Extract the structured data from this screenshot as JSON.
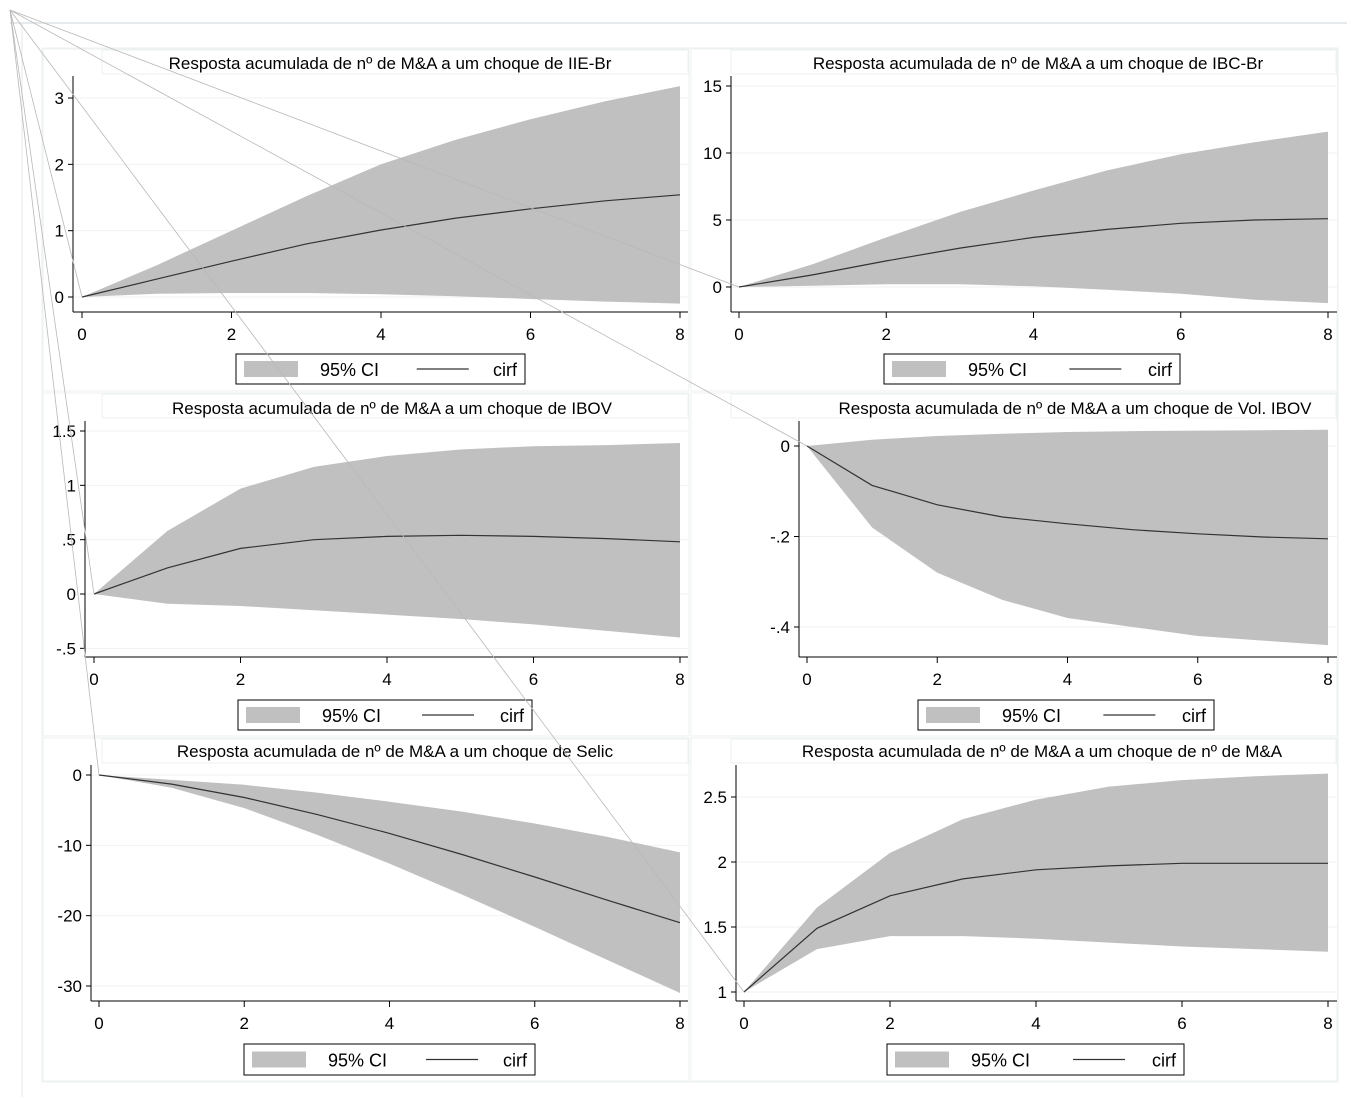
{
  "legend": {
    "ci_label": "95% CI",
    "line_label": "cirf"
  },
  "colors": {
    "band": "#c0c0c0",
    "line": "#333333",
    "grid": "#eef2f3",
    "background": "#ffffff"
  },
  "chart_data": [
    {
      "type": "area",
      "title": "Resposta acumulada de nº de M&A a um choque de IIE-Br",
      "x": [
        0,
        1,
        2,
        3,
        4,
        5,
        6,
        7,
        8
      ],
      "series": [
        {
          "name": "95% CI",
          "lower": [
            0,
            0.05,
            0.06,
            0.06,
            0.04,
            0.01,
            -0.03,
            -0.07,
            -0.1
          ],
          "upper": [
            0,
            0.48,
            1.0,
            1.52,
            2.0,
            2.37,
            2.68,
            2.95,
            3.18
          ]
        },
        {
          "name": "cirf",
          "values": [
            0,
            0.27,
            0.54,
            0.8,
            1.01,
            1.19,
            1.33,
            1.45,
            1.54
          ]
        }
      ],
      "xticks": [
        0,
        2,
        4,
        6,
        8
      ],
      "yticks": [
        0,
        1,
        2,
        3
      ],
      "ytick_labels": [
        "0",
        "1",
        "2",
        "3"
      ],
      "xlim": [
        0,
        8
      ],
      "ylim": [
        -0.2,
        3.3
      ]
    },
    {
      "type": "area",
      "title": "Resposta acumulada de nº de M&A a um choque de IBC-Br",
      "x": [
        0,
        1,
        2,
        3,
        4,
        5,
        6,
        7,
        8
      ],
      "series": [
        {
          "name": "95% CI",
          "lower": [
            0,
            0.1,
            0.2,
            0.2,
            0.05,
            -0.2,
            -0.5,
            -0.95,
            -1.2
          ],
          "upper": [
            0,
            1.7,
            3.7,
            5.6,
            7.2,
            8.7,
            9.9,
            10.8,
            11.6
          ]
        },
        {
          "name": "cirf",
          "values": [
            0,
            0.9,
            1.95,
            2.9,
            3.7,
            4.3,
            4.75,
            5.0,
            5.1
          ]
        }
      ],
      "xticks": [
        0,
        2,
        4,
        6,
        8
      ],
      "yticks": [
        0,
        5,
        10,
        15
      ],
      "ytick_labels": [
        "0",
        "5",
        "10",
        "15"
      ],
      "xlim": [
        0,
        8
      ],
      "ylim": [
        -2,
        15.8
      ]
    },
    {
      "type": "area",
      "title": "Resposta acumulada de nº de M&A a um choque de IBOV",
      "x": [
        0,
        1,
        2,
        3,
        4,
        5,
        6,
        7,
        8
      ],
      "series": [
        {
          "name": "95% CI",
          "lower": [
            0,
            -0.09,
            -0.11,
            -0.15,
            -0.19,
            -0.23,
            -0.28,
            -0.34,
            -0.4
          ],
          "upper": [
            0,
            0.58,
            0.97,
            1.17,
            1.27,
            1.33,
            1.36,
            1.37,
            1.39
          ]
        },
        {
          "name": "cirf",
          "values": [
            0,
            0.24,
            0.42,
            0.5,
            0.53,
            0.54,
            0.53,
            0.51,
            0.48
          ]
        }
      ],
      "xticks": [
        0,
        2,
        4,
        6,
        8
      ],
      "yticks": [
        -0.5,
        0,
        0.5,
        1,
        1.5
      ],
      "ytick_labels": [
        "-.5",
        "0",
        ".5",
        "1",
        "1.5"
      ],
      "xlim": [
        0,
        8
      ],
      "ylim": [
        -0.55,
        1.6
      ]
    },
    {
      "type": "area",
      "title": "Resposta acumulada de nº de M&A a um choque de Vol. IBOV",
      "x": [
        0,
        1,
        2,
        3,
        4,
        5,
        6,
        7,
        8
      ],
      "series": [
        {
          "name": "95% CI",
          "lower": [
            0,
            -0.18,
            -0.28,
            -0.34,
            -0.38,
            -0.4,
            -0.42,
            -0.43,
            -0.44
          ],
          "upper": [
            0,
            0.014,
            0.022,
            0.027,
            0.031,
            0.033,
            0.034,
            0.035,
            0.036
          ]
        },
        {
          "name": "cirf",
          "values": [
            0,
            -0.087,
            -0.13,
            -0.157,
            -0.172,
            -0.185,
            -0.194,
            -0.201,
            -0.205
          ]
        }
      ],
      "xticks": [
        0,
        2,
        4,
        6,
        8
      ],
      "yticks": [
        -0.4,
        -0.2,
        0
      ],
      "ytick_labels": [
        "-.4",
        "-.2",
        "0"
      ],
      "xlim": [
        0,
        8
      ],
      "ylim": [
        -0.465,
        0.04
      ]
    },
    {
      "type": "area",
      "title": "Resposta acumulada de nº de M&A a um choque de Selic",
      "x": [
        0,
        1,
        2,
        3,
        4,
        5,
        6,
        7,
        8
      ],
      "series": [
        {
          "name": "95% CI",
          "lower": [
            0,
            -1.8,
            -4.7,
            -8.5,
            -12.6,
            -17.0,
            -21.6,
            -26.3,
            -31.0
          ],
          "upper": [
            0,
            -0.7,
            -1.4,
            -2.5,
            -3.8,
            -5.2,
            -6.9,
            -8.8,
            -11.0
          ]
        },
        {
          "name": "cirf",
          "values": [
            0,
            -1.3,
            -3.2,
            -5.6,
            -8.3,
            -11.3,
            -14.5,
            -17.8,
            -21.0
          ]
        }
      ],
      "xticks": [
        0,
        2,
        4,
        6,
        8
      ],
      "yticks": [
        -30,
        -20,
        -10,
        0
      ],
      "ytick_labels": [
        "-30",
        "-20",
        "-10",
        "0"
      ],
      "xlim": [
        0,
        8
      ],
      "ylim": [
        -31.5,
        0.5
      ]
    },
    {
      "type": "area",
      "title": "Resposta acumulada de nº de M&A a um choque de nº de M&A",
      "x": [
        0,
        1,
        2,
        3,
        4,
        5,
        6,
        7,
        8
      ],
      "series": [
        {
          "name": "95% CI",
          "lower": [
            1,
            1.33,
            1.43,
            1.43,
            1.41,
            1.38,
            1.35,
            1.33,
            1.31
          ],
          "upper": [
            1,
            1.65,
            2.07,
            2.33,
            2.48,
            2.58,
            2.63,
            2.66,
            2.68
          ]
        },
        {
          "name": "cirf",
          "values": [
            1,
            1.49,
            1.74,
            1.87,
            1.94,
            1.97,
            1.99,
            1.99,
            1.99
          ]
        }
      ],
      "xticks": [
        0,
        2,
        4,
        6,
        8
      ],
      "yticks": [
        1,
        1.5,
        2,
        2.5
      ],
      "ytick_labels": [
        "1",
        "1.5",
        "2",
        "2.5"
      ],
      "xlim": [
        0,
        8
      ],
      "ylim": [
        0.97,
        2.75
      ]
    }
  ]
}
